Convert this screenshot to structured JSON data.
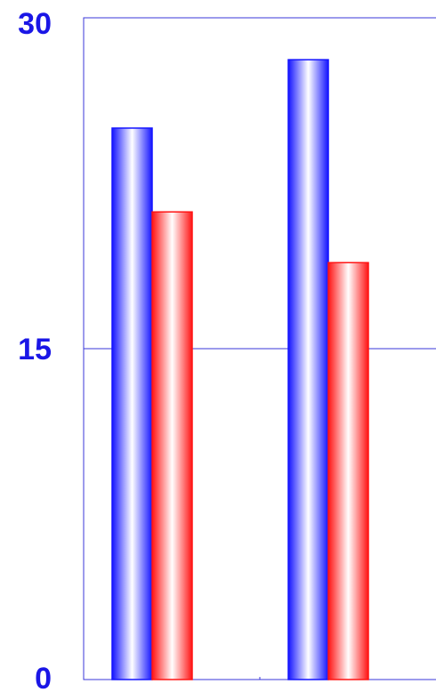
{
  "chart_data": {
    "type": "bar",
    "categories": [
      "",
      ""
    ],
    "series": [
      {
        "color": "#1414ff",
        "values": [
          25,
          28.1
        ]
      },
      {
        "color": "#ff1414",
        "values": [
          21.2,
          18.9
        ]
      }
    ],
    "ylim": [
      0,
      30
    ],
    "yticks": [
      {
        "value": 0,
        "label": "0"
      },
      {
        "value": 15,
        "label": "15"
      },
      {
        "value": 30,
        "label": "30"
      }
    ],
    "grid": true,
    "legend": "none",
    "colors": {
      "axis": "#3a37d8",
      "tick_text": "#1a16e6"
    }
  }
}
